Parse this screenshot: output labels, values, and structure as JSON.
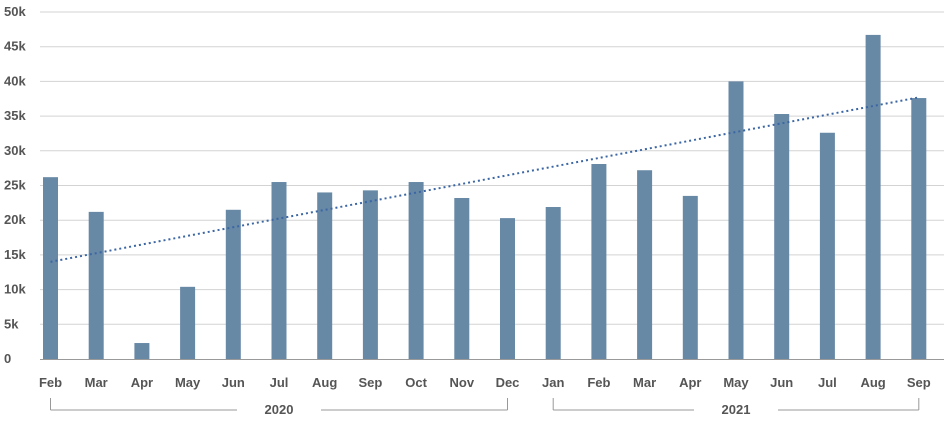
{
  "chart_data": {
    "type": "bar",
    "categories": [
      "Feb",
      "Mar",
      "Apr",
      "May",
      "Jun",
      "Jul",
      "Aug",
      "Sep",
      "Oct",
      "Nov",
      "Dec",
      "Jan",
      "Feb",
      "Mar",
      "Apr",
      "May",
      "Jun",
      "Jul",
      "Aug",
      "Sep"
    ],
    "values": [
      26200,
      21200,
      2300,
      10400,
      21500,
      25500,
      24000,
      24300,
      25500,
      23200,
      20300,
      21900,
      28100,
      27200,
      23500,
      40000,
      35300,
      32600,
      46700,
      37600
    ],
    "groups": [
      {
        "label": "2020",
        "start": 0,
        "end": 10
      },
      {
        "label": "2021",
        "start": 11,
        "end": 19
      }
    ],
    "y_ticks": [
      0,
      5000,
      10000,
      15000,
      20000,
      25000,
      30000,
      35000,
      40000,
      45000,
      50000
    ],
    "y_tick_labels": [
      "0",
      "5k",
      "10k",
      "15k",
      "20k",
      "25k",
      "30k",
      "35k",
      "40k",
      "45k",
      "50k"
    ],
    "ylim": [
      0,
      50000
    ],
    "trendline": {
      "start": 14000,
      "end": 37700,
      "style": "dotted"
    },
    "grid": true,
    "colors": {
      "bar": "#6789a6",
      "trend": "#3b66a3",
      "grid": "#d3d3d3",
      "axis": "#999999",
      "text": "#555555"
    }
  }
}
